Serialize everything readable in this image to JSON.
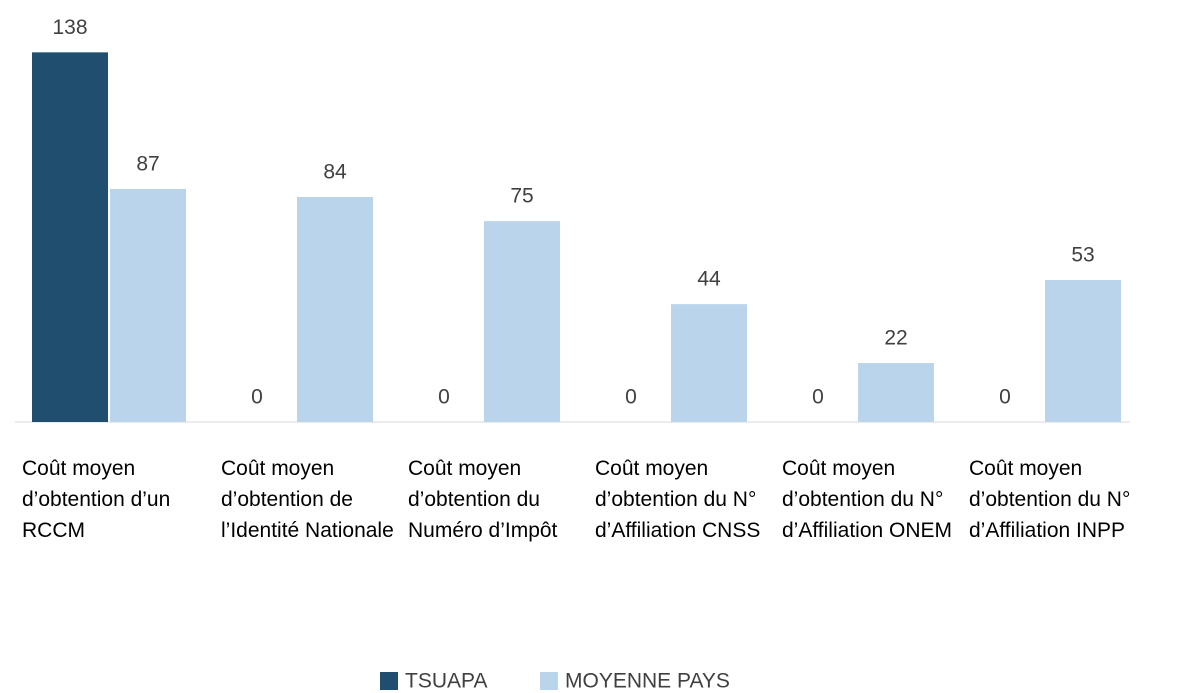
{
  "chart_data": {
    "type": "bar",
    "categories": [
      "Coût moyen d’obtention d’un RCCM",
      "Coût moyen d’obtention de l’Identité Nationale",
      "Coût moyen d’obtention du Numéro d’Impôt",
      "Coût moyen d’obtention du N° d’Affiliation CNSS",
      "Coût moyen d’obtention du N° d’Affiliation ONEM",
      "Coût moyen d’obtention du N° d’Affiliation INPP"
    ],
    "series": [
      {
        "name": "TSUAPA",
        "color": "#1f4e6e",
        "values": [
          138,
          0,
          0,
          0,
          0,
          0
        ]
      },
      {
        "name": "MOYENNE PAYS",
        "color": "#bad4ec",
        "values": [
          87,
          84,
          75,
          44,
          22,
          53
        ]
      }
    ],
    "ylim": [
      0,
      140
    ],
    "legend": "bottom"
  }
}
